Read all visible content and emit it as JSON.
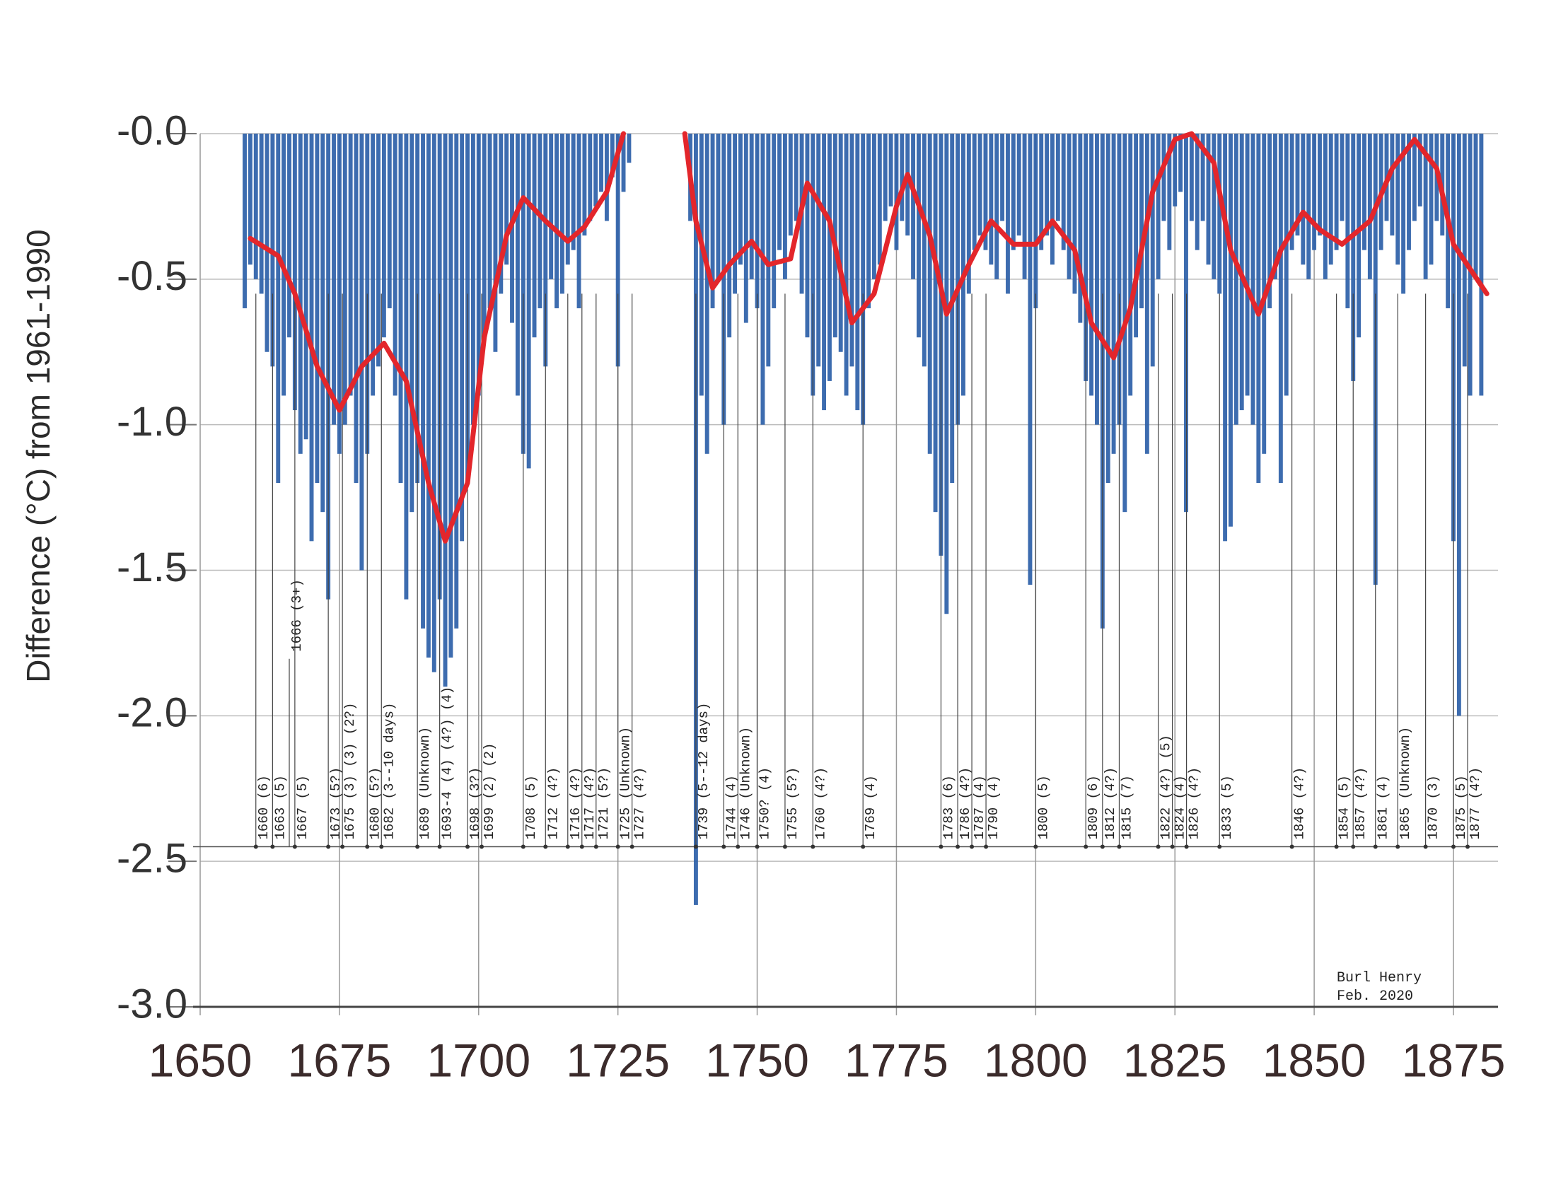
{
  "chart_data": {
    "type": "bar",
    "y_label": "Difference (°C) from 1961-1990",
    "xlim": [
      1650,
      1883
    ],
    "ylim": [
      -3.0,
      0
    ],
    "xticks": [
      1650,
      1675,
      1700,
      1725,
      1750,
      1775,
      1800,
      1825,
      1850,
      1875
    ],
    "yticks": [
      {
        "value": 0,
        "label": "-0.0"
      },
      -0.5,
      {
        "value": -1,
        "label": "-1.0"
      },
      -1.5,
      {
        "value": -2,
        "label": "-2.0"
      },
      -2.5,
      {
        "value": -3,
        "label": "-3.0"
      }
    ],
    "grid": true,
    "series": [
      {
        "type": "bar",
        "color": "#2c5fa8",
        "x": [
          1658,
          1659,
          1660,
          1661,
          1662,
          1663,
          1664,
          1665,
          1666,
          1667,
          1668,
          1669,
          1670,
          1671,
          1672,
          1673,
          1674,
          1675,
          1676,
          1677,
          1678,
          1679,
          1680,
          1681,
          1682,
          1683,
          1684,
          1685,
          1686,
          1687,
          1688,
          1689,
          1690,
          1691,
          1692,
          1693,
          1694,
          1695,
          1696,
          1697,
          1698,
          1699,
          1700,
          1701,
          1702,
          1703,
          1704,
          1705,
          1706,
          1707,
          1708,
          1709,
          1710,
          1711,
          1712,
          1713,
          1714,
          1715,
          1716,
          1717,
          1718,
          1719,
          1720,
          1721,
          1722,
          1723,
          1724,
          1725,
          1726,
          1727,
          1738,
          1739,
          1740,
          1741,
          1742,
          1743,
          1744,
          1745,
          1746,
          1747,
          1748,
          1749,
          1750,
          1751,
          1752,
          1753,
          1754,
          1755,
          1756,
          1757,
          1758,
          1759,
          1760,
          1761,
          1762,
          1763,
          1764,
          1765,
          1766,
          1767,
          1768,
          1769,
          1770,
          1771,
          1772,
          1773,
          1774,
          1775,
          1776,
          1777,
          1778,
          1779,
          1780,
          1781,
          1782,
          1783,
          1784,
          1785,
          1786,
          1787,
          1788,
          1789,
          1790,
          1791,
          1792,
          1793,
          1794,
          1795,
          1796,
          1797,
          1798,
          1799,
          1800,
          1801,
          1802,
          1803,
          1804,
          1805,
          1806,
          1807,
          1808,
          1809,
          1810,
          1811,
          1812,
          1813,
          1814,
          1815,
          1816,
          1817,
          1818,
          1819,
          1820,
          1821,
          1822,
          1823,
          1824,
          1825,
          1826,
          1827,
          1828,
          1829,
          1830,
          1831,
          1832,
          1833,
          1834,
          1835,
          1836,
          1837,
          1838,
          1839,
          1840,
          1841,
          1842,
          1843,
          1844,
          1845,
          1846,
          1847,
          1848,
          1849,
          1850,
          1851,
          1852,
          1853,
          1854,
          1855,
          1856,
          1857,
          1858,
          1859,
          1860,
          1861,
          1862,
          1863,
          1864,
          1865,
          1866,
          1867,
          1868,
          1869,
          1870,
          1871,
          1872,
          1873,
          1874,
          1875,
          1876,
          1877,
          1878,
          1879,
          1880
        ],
        "values": [
          -0.6,
          -0.45,
          -0.5,
          -0.55,
          -0.75,
          -0.8,
          -1.2,
          -0.9,
          -0.7,
          -0.95,
          -1.1,
          -1.05,
          -1.4,
          -1.2,
          -1.3,
          -1.6,
          -1.0,
          -1.1,
          -1.0,
          -0.9,
          -1.2,
          -1.5,
          -1.1,
          -0.9,
          -0.8,
          -0.7,
          -0.6,
          -0.9,
          -1.2,
          -1.6,
          -1.3,
          -1.2,
          -1.7,
          -1.8,
          -1.85,
          -1.6,
          -1.9,
          -1.8,
          -1.7,
          -1.4,
          -1.2,
          -1.0,
          -0.9,
          -0.7,
          -0.6,
          -0.75,
          -0.55,
          -0.45,
          -0.65,
          -0.9,
          -1.1,
          -1.15,
          -0.7,
          -0.6,
          -0.8,
          -0.5,
          -0.6,
          -0.55,
          -0.45,
          -0.4,
          -0.6,
          -0.35,
          -0.3,
          -0.25,
          -0.2,
          -0.3,
          -0.15,
          -0.8,
          -0.2,
          -0.1,
          -0.3,
          -2.65,
          -0.9,
          -1.1,
          -0.6,
          -0.5,
          -1.0,
          -0.7,
          -0.55,
          -0.45,
          -0.65,
          -0.5,
          -0.6,
          -1.0,
          -0.8,
          -0.6,
          -0.4,
          -0.5,
          -0.35,
          -0.3,
          -0.55,
          -0.7,
          -0.9,
          -0.8,
          -0.95,
          -0.85,
          -0.7,
          -0.75,
          -0.9,
          -0.8,
          -0.95,
          -1.0,
          -0.6,
          -0.5,
          -0.45,
          -0.3,
          -0.25,
          -0.4,
          -0.3,
          -0.35,
          -0.5,
          -0.7,
          -0.8,
          -1.1,
          -1.3,
          -1.45,
          -1.65,
          -1.2,
          -1.0,
          -0.9,
          -0.55,
          -0.4,
          -0.35,
          -0.4,
          -0.45,
          -0.5,
          -0.3,
          -0.55,
          -0.4,
          -0.35,
          -0.5,
          -1.55,
          -0.6,
          -0.4,
          -0.35,
          -0.45,
          -0.3,
          -0.4,
          -0.5,
          -0.55,
          -0.65,
          -0.85,
          -0.9,
          -1.0,
          -1.7,
          -1.2,
          -1.1,
          -1.0,
          -1.3,
          -0.9,
          -0.7,
          -0.6,
          -1.1,
          -0.8,
          -0.5,
          -0.3,
          -0.4,
          -0.25,
          -0.2,
          -1.3,
          -0.3,
          -0.4,
          -0.3,
          -0.45,
          -0.5,
          -0.55,
          -1.4,
          -1.35,
          -1.0,
          -0.95,
          -0.9,
          -1.0,
          -1.2,
          -1.1,
          -0.6,
          -0.5,
          -1.2,
          -0.9,
          -0.4,
          -0.35,
          -0.45,
          -0.5,
          -0.4,
          -0.35,
          -0.5,
          -0.45,
          -0.4,
          -0.3,
          -0.6,
          -0.85,
          -0.7,
          -0.4,
          -0.5,
          -1.55,
          -0.4,
          -0.3,
          -0.35,
          -0.45,
          -0.55,
          -0.4,
          -0.3,
          -0.25,
          -0.5,
          -0.45,
          -0.3,
          -0.35,
          -0.6,
          -1.4,
          -2.0,
          -0.8,
          -0.9,
          -0.5,
          -0.9
        ]
      },
      {
        "type": "line",
        "color": "#e3262b",
        "x": [
          1659,
          1664,
          1667,
          1671,
          1675,
          1679,
          1683,
          1687,
          1691,
          1694,
          1698,
          1701,
          1705,
          1708,
          1712,
          1716,
          1719,
          1723,
          1726,
          1732,
          1737,
          1739,
          1742,
          1745,
          1749,
          1752,
          1756,
          1759,
          1763,
          1767,
          1771,
          1775,
          1777,
          1781,
          1784,
          1788,
          1792,
          1796,
          1800,
          1803,
          1807,
          1810,
          1814,
          1817,
          1821,
          1825,
          1828,
          1832,
          1835,
          1840,
          1844,
          1848,
          1851,
          1855,
          1860,
          1864,
          1868,
          1872,
          1875,
          1881
        ],
        "values": [
          -0.36,
          -0.42,
          -0.55,
          -0.8,
          -0.95,
          -0.8,
          -0.72,
          -0.85,
          -1.2,
          -1.4,
          -1.2,
          -0.7,
          -0.35,
          -0.22,
          -0.3,
          -0.37,
          -0.32,
          -0.2,
          0.0,
          null,
          0.0,
          -0.3,
          -0.53,
          -0.45,
          -0.37,
          -0.45,
          -0.43,
          -0.17,
          -0.3,
          -0.65,
          -0.55,
          -0.25,
          -0.14,
          -0.35,
          -0.62,
          -0.45,
          -0.3,
          -0.38,
          -0.38,
          -0.3,
          -0.4,
          -0.65,
          -0.77,
          -0.6,
          -0.2,
          -0.02,
          0.0,
          -0.1,
          -0.4,
          -0.62,
          -0.4,
          -0.27,
          -0.33,
          -0.38,
          -0.3,
          -0.12,
          -0.02,
          -0.12,
          -0.38,
          -0.55
        ]
      }
    ],
    "annotations": [
      {
        "x": 1660,
        "label": "1660 (6)"
      },
      {
        "x": 1663,
        "label": "1663 (5)"
      },
      {
        "x": 1667,
        "label": "1667 (5)"
      },
      {
        "x": 1673,
        "label": "1673 (5?)"
      },
      {
        "x": 1675,
        "label": "1675 (3) (3) (2?)"
      },
      {
        "x": 1680,
        "label": "1680 (5?)"
      },
      {
        "x": 1682,
        "label": "1682 (3--10 days)"
      },
      {
        "x": 1689,
        "label": "1689 (Unknown)"
      },
      {
        "x": 1693,
        "label": "1693-4 (4) (4?) (4)"
      },
      {
        "x": 1698,
        "label": "1698 (3?)"
      },
      {
        "x": 1699,
        "label": "1699 (2) (2)"
      },
      {
        "x": 1708,
        "label": "1708 (5)"
      },
      {
        "x": 1712,
        "label": "1712 (4?)"
      },
      {
        "x": 1716,
        "label": "1716 (4?)"
      },
      {
        "x": 1717,
        "label": "1717 (4?)"
      },
      {
        "x": 1721,
        "label": "1721 (5?)"
      },
      {
        "x": 1725,
        "label": "1725 (Unknown)"
      },
      {
        "x": 1727,
        "label": "1727 (4?)"
      },
      {
        "x": 1739,
        "label": "1739 (5--12 days)"
      },
      {
        "x": 1744,
        "label": "1744 (4)"
      },
      {
        "x": 1746,
        "label": "1746 (Unknown)"
      },
      {
        "x": 1750,
        "label": "1750? (4)"
      },
      {
        "x": 1755,
        "label": "1755 (5?)"
      },
      {
        "x": 1760,
        "label": "1760 (4?)"
      },
      {
        "x": 1769,
        "label": "1769 (4)"
      },
      {
        "x": 1783,
        "label": "1783 (6)"
      },
      {
        "x": 1786,
        "label": "1786 (4?)"
      },
      {
        "x": 1787,
        "label": "1787 (4)"
      },
      {
        "x": 1790,
        "label": "1790 (4)"
      },
      {
        "x": 1800,
        "label": "1800 (5)"
      },
      {
        "x": 1809,
        "label": "1809 (6)"
      },
      {
        "x": 1812,
        "label": "1812 (4?)"
      },
      {
        "x": 1815,
        "label": "1815 (7)"
      },
      {
        "x": 1822,
        "label": "1822 (4?) (5)"
      },
      {
        "x": 1824,
        "label": "1824 (4)"
      },
      {
        "x": 1826,
        "label": "1826 (4?)"
      },
      {
        "x": 1833,
        "label": "1833 (5)"
      },
      {
        "x": 1846,
        "label": "1846 (4?)"
      },
      {
        "x": 1854,
        "label": "1854 (5)"
      },
      {
        "x": 1857,
        "label": "1857 (4?)"
      },
      {
        "x": 1861,
        "label": "1861 (4)"
      },
      {
        "x": 1865,
        "label": "1865 (Unknown)"
      },
      {
        "x": 1870,
        "label": "1870 (3)"
      },
      {
        "x": 1875,
        "label": "1875 (5)"
      },
      {
        "x": 1877,
        "label": "1877 (4?)"
      }
    ],
    "raised_annotations": [
      {
        "x": 1666,
        "label": "1666 (3+)"
      }
    ],
    "signature": [
      "Burl Henry",
      "Feb. 2020"
    ]
  }
}
